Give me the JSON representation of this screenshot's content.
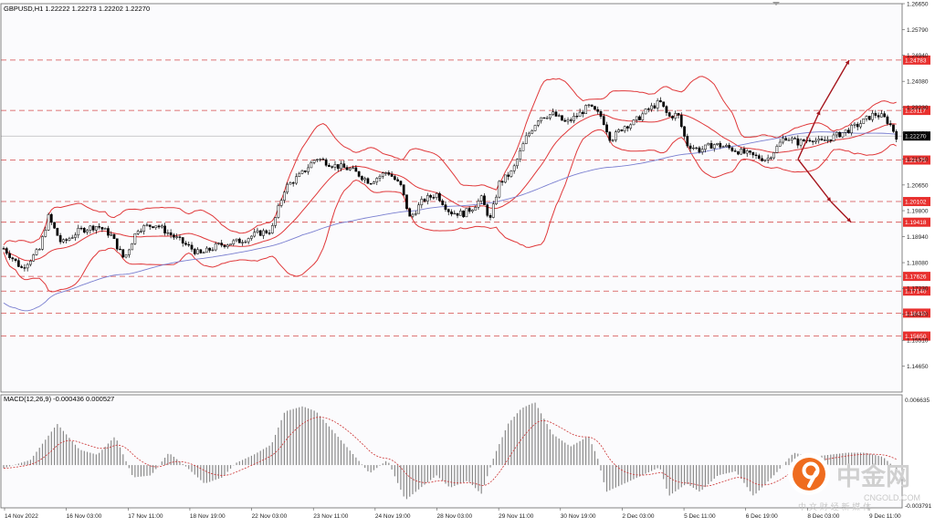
{
  "symbol_header": "GBPUSD,H1  1.22222 1.22273 1.22202 1.22270",
  "macd_header": "MACD(12,26,9) -0.000436 0.000527",
  "watermark": {
    "brand": "中金网",
    "domain": "CNGOLD.COM",
    "tagline": "中 文 财 经 新 媒 体"
  },
  "colors": {
    "background": "#ffffff",
    "bollinger": "#e0383a",
    "ma": "#7a7fd0",
    "level_line": "#d44a4a",
    "level_label_bg": "#e8302e",
    "arrow": "#a5151d",
    "candle": "#000000",
    "macd_hist": "#8a8a8a",
    "macd_signal": "#cc3333",
    "current_price_bg": "#000000"
  },
  "chart_data": [
    {
      "type": "candlestick",
      "symbol": "GBPUSD",
      "timeframe": "H1",
      "ohlc_header": [
        1.22222,
        1.22273,
        1.22202,
        1.2227
      ],
      "x_tick_labels": [
        "14 Nov 2022",
        "16 Nov 03:00",
        "17 Nov 11:00",
        "18 Nov 19:00",
        "22 Nov 03:00",
        "23 Nov 11:00",
        "24 Nov 19:00",
        "28 Nov 03:00",
        "29 Nov 11:00",
        "30 Nov 19:00",
        "2 Dec 03:00",
        "5 Dec 11:00",
        "6 Dec 19:00",
        "8 Dec 03:00",
        "9 Dec 11:00"
      ],
      "y_tick_labels": [
        "1.26650",
        "1.25790",
        "1.24940",
        "1.24080",
        "1.23230",
        "1.22370",
        "1.21510",
        "1.20650",
        "1.19800",
        "1.18940",
        "1.18080",
        "1.17230",
        "1.16370",
        "1.15510",
        "1.14650"
      ],
      "ylim": [
        1.1422,
        1.2665
      ],
      "levels": [
        "1.24783",
        "1.23117",
        "1.21475",
        "1.20102",
        "1.19418",
        "1.17626",
        "1.17140",
        "1.16410",
        "1.15650"
      ],
      "current_price": "1.22270",
      "close_path": [
        [
          0,
          1.1855
        ],
        [
          0.02,
          1.179
        ],
        [
          0.04,
          1.185
        ],
        [
          0.05,
          1.196
        ],
        [
          0.065,
          1.187
        ],
        [
          0.085,
          1.1915
        ],
        [
          0.105,
          1.193
        ],
        [
          0.12,
          1.19
        ],
        [
          0.135,
          1.182
        ],
        [
          0.15,
          1.192
        ],
        [
          0.17,
          1.1935
        ],
        [
          0.19,
          1.1895
        ],
        [
          0.21,
          1.1855
        ],
        [
          0.22,
          1.1835
        ],
        [
          0.24,
          1.1865
        ],
        [
          0.265,
          1.188
        ],
        [
          0.285,
          1.1905
        ],
        [
          0.3,
          1.1915
        ],
        [
          0.315,
          1.2055
        ],
        [
          0.335,
          1.2105
        ],
        [
          0.35,
          1.2155
        ],
        [
          0.37,
          1.213
        ],
        [
          0.39,
          1.2115
        ],
        [
          0.41,
          1.2075
        ],
        [
          0.43,
          1.211
        ],
        [
          0.445,
          1.206
        ],
        [
          0.455,
          1.1955
        ],
        [
          0.47,
          1.2015
        ],
        [
          0.485,
          1.2035
        ],
        [
          0.5,
          1.1975
        ],
        [
          0.515,
          1.197
        ],
        [
          0.525,
          1.199
        ],
        [
          0.535,
          1.202
        ],
        [
          0.545,
          1.195
        ],
        [
          0.555,
          1.207
        ],
        [
          0.57,
          1.211
        ],
        [
          0.585,
          1.222
        ],
        [
          0.6,
          1.229
        ],
        [
          0.615,
          1.23
        ],
        [
          0.63,
          1.227
        ],
        [
          0.645,
          1.23
        ],
        [
          0.655,
          1.2325
        ],
        [
          0.67,
          1.229
        ],
        [
          0.68,
          1.2215
        ],
        [
          0.695,
          1.226
        ],
        [
          0.705,
          1.227
        ],
        [
          0.72,
          1.231
        ],
        [
          0.735,
          1.234
        ],
        [
          0.745,
          1.229
        ],
        [
          0.755,
          1.23
        ],
        [
          0.765,
          1.22
        ],
        [
          0.78,
          1.218
        ],
        [
          0.795,
          1.22
        ],
        [
          0.81,
          1.219
        ],
        [
          0.825,
          1.2175
        ],
        [
          0.84,
          1.216
        ],
        [
          0.855,
          1.215
        ],
        [
          0.865,
          1.2185
        ],
        [
          0.875,
          1.2225
        ],
        [
          0.89,
          1.2205
        ],
        [
          0.905,
          1.222
        ],
        [
          0.915,
          1.2205
        ],
        [
          0.93,
          1.2225
        ],
        [
          0.945,
          1.2245
        ],
        [
          0.955,
          1.226
        ],
        [
          0.965,
          1.228
        ],
        [
          0.975,
          1.23
        ],
        [
          0.985,
          1.229
        ],
        [
          0.992,
          1.227
        ],
        [
          1,
          1.2227
        ]
      ],
      "forecast": {
        "pivot": 1.215,
        "up_mid": 1.2311,
        "up_target": 1.2478,
        "down_mid": 1.201,
        "down_target": 1.1942
      }
    },
    {
      "type": "bar",
      "name": "MACD(12,26,9)",
      "values_header": [
        -0.000436,
        0.000527
      ],
      "y_tick_labels": [
        "0.006635",
        "-0.003791"
      ],
      "ylim": [
        -0.003791,
        0.006635
      ],
      "histogram_path": [
        [
          0,
          -0.0003
        ],
        [
          0.03,
          0.0005
        ],
        [
          0.06,
          0.004
        ],
        [
          0.085,
          0.0015
        ],
        [
          0.105,
          0.001
        ],
        [
          0.125,
          0.0028
        ],
        [
          0.145,
          -0.0012
        ],
        [
          0.165,
          -0.001
        ],
        [
          0.185,
          0.0012
        ],
        [
          0.205,
          -0.0002
        ],
        [
          0.225,
          -0.0018
        ],
        [
          0.245,
          -0.0012
        ],
        [
          0.26,
          0.0002
        ],
        [
          0.28,
          0.001
        ],
        [
          0.3,
          0.002
        ],
        [
          0.315,
          0.0052
        ],
        [
          0.335,
          0.0057
        ],
        [
          0.35,
          0.0052
        ],
        [
          0.37,
          0.0032
        ],
        [
          0.39,
          0.0012
        ],
        [
          0.41,
          -0.0008
        ],
        [
          0.43,
          0.0005
        ],
        [
          0.45,
          -0.0034
        ],
        [
          0.47,
          -0.002
        ],
        [
          0.485,
          -0.001
        ],
        [
          0.5,
          -0.0022
        ],
        [
          0.52,
          -0.0015
        ],
        [
          0.535,
          -0.0028
        ],
        [
          0.55,
          0.001
        ],
        [
          0.565,
          0.004
        ],
        [
          0.58,
          0.0055
        ],
        [
          0.595,
          0.0061
        ],
        [
          0.615,
          0.003
        ],
        [
          0.635,
          0.0018
        ],
        [
          0.655,
          0.0028
        ],
        [
          0.665,
          0.0008
        ],
        [
          0.675,
          -0.0026
        ],
        [
          0.695,
          -0.0018
        ],
        [
          0.715,
          -0.001
        ],
        [
          0.735,
          -0.0002
        ],
        [
          0.745,
          -0.003
        ],
        [
          0.765,
          -0.0018
        ],
        [
          0.78,
          -0.0026
        ],
        [
          0.8,
          -0.001
        ],
        [
          0.82,
          -0.0006
        ],
        [
          0.84,
          -0.003
        ],
        [
          0.865,
          -0.0008
        ],
        [
          0.885,
          0.0012
        ],
        [
          0.905,
          0.0008
        ],
        [
          0.925,
          0.001
        ],
        [
          0.945,
          0.0012
        ],
        [
          0.965,
          0.0012
        ],
        [
          0.985,
          0.0008
        ],
        [
          1,
          -0.0004
        ]
      ]
    }
  ]
}
